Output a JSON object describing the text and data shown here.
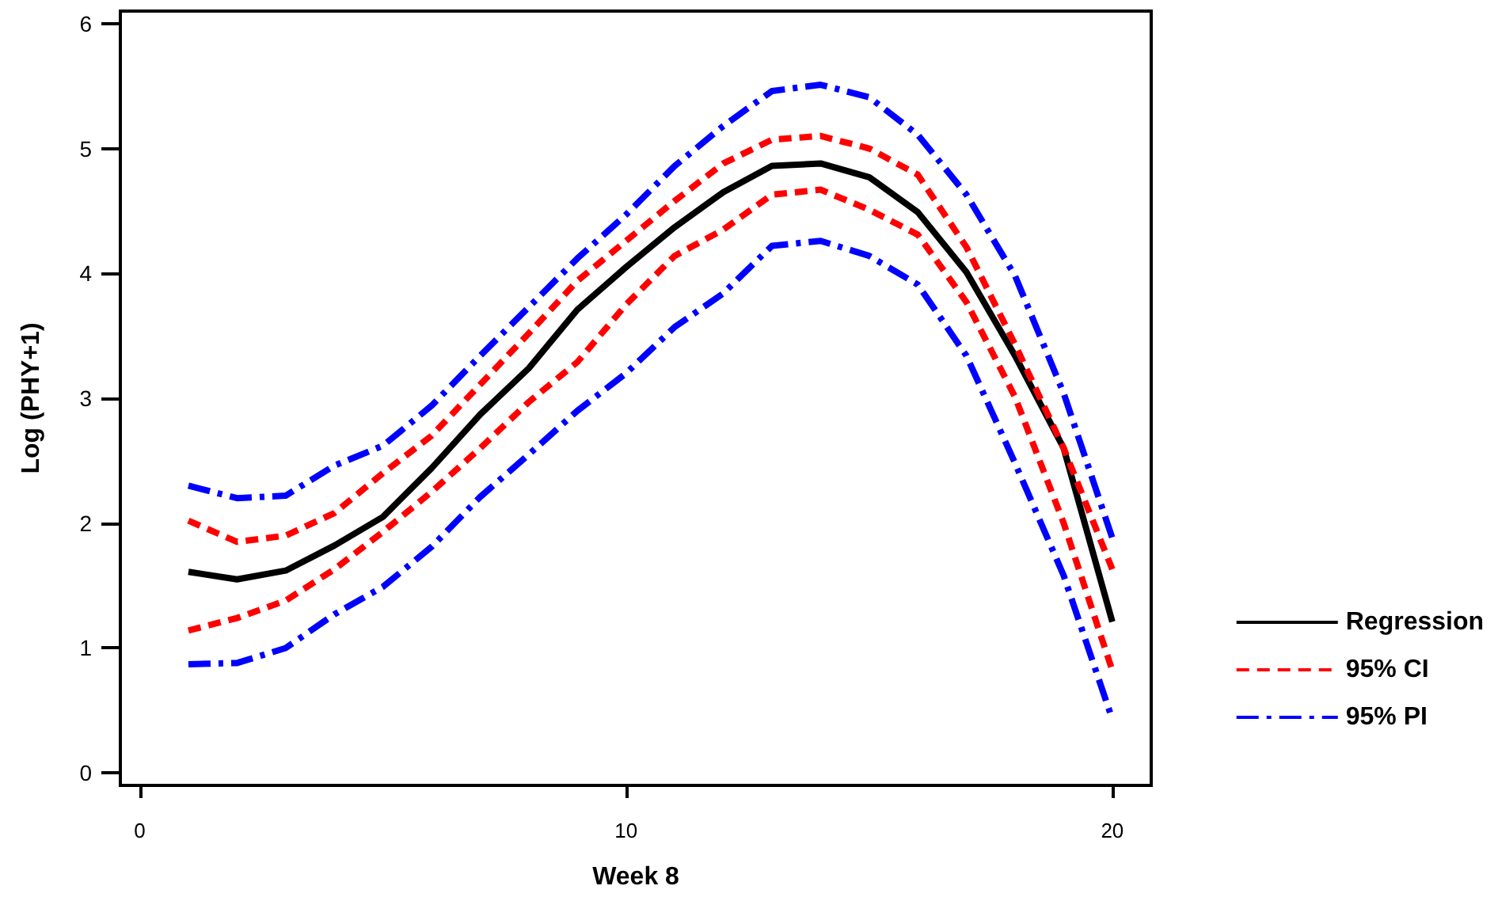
{
  "chart_data": {
    "type": "line",
    "xlabel": "Week 8",
    "ylabel": "Log (PHY+1)",
    "x": [
      1,
      2,
      3,
      4,
      5,
      6,
      7,
      8,
      9,
      10,
      11,
      12,
      13,
      14,
      15,
      16,
      17,
      18,
      19,
      20
    ],
    "series": [
      {
        "name": "Regression",
        "color": "#000000",
        "line_style": "solid",
        "values": [
          1.61,
          1.55,
          1.62,
          1.82,
          2.05,
          2.44,
          2.87,
          3.24,
          3.71,
          4.05,
          4.37,
          4.65,
          4.86,
          4.88,
          4.77,
          4.49,
          4.01,
          3.34,
          2.6,
          1.21
        ]
      },
      {
        "name": "95% CI",
        "color": "#ff0000",
        "line_style": "dashed",
        "values": [
          2.02,
          1.85,
          1.9,
          2.08,
          2.4,
          2.7,
          3.11,
          3.52,
          3.94,
          4.26,
          4.58,
          4.88,
          5.07,
          5.1,
          5.0,
          4.79,
          4.21,
          3.43,
          2.6,
          1.63
        ]
      },
      {
        "color": "#ff0000",
        "line_style": "dashed",
        "values": [
          1.14,
          1.24,
          1.38,
          1.63,
          1.93,
          2.25,
          2.6,
          2.97,
          3.29,
          3.75,
          4.14,
          4.35,
          4.63,
          4.67,
          4.51,
          4.31,
          3.77,
          3.01,
          2.0,
          0.82
        ]
      },
      {
        "name": "95% PI",
        "color": "#0000ff",
        "line_style": "dashdot",
        "values": [
          2.3,
          2.2,
          2.22,
          2.46,
          2.62,
          2.94,
          3.34,
          3.73,
          4.12,
          4.47,
          4.86,
          5.18,
          5.46,
          5.51,
          5.41,
          5.11,
          4.63,
          3.98,
          3.04,
          1.88
        ]
      },
      {
        "color": "#0000ff",
        "line_style": "dashdot",
        "values": [
          0.87,
          0.88,
          1.0,
          1.27,
          1.49,
          1.81,
          2.21,
          2.55,
          2.9,
          3.2,
          3.57,
          3.84,
          4.22,
          4.26,
          4.14,
          3.91,
          3.34,
          2.48,
          1.58,
          0.43
        ]
      }
    ],
    "xlim": [
      -0.4,
      20.8
    ],
    "xticks": [
      0,
      10,
      20
    ],
    "ylim": [
      -0.1,
      6.1
    ],
    "yticks": [
      0,
      1,
      2,
      3,
      4,
      5,
      6
    ],
    "grid": false,
    "legend": "right",
    "marker": "none"
  }
}
